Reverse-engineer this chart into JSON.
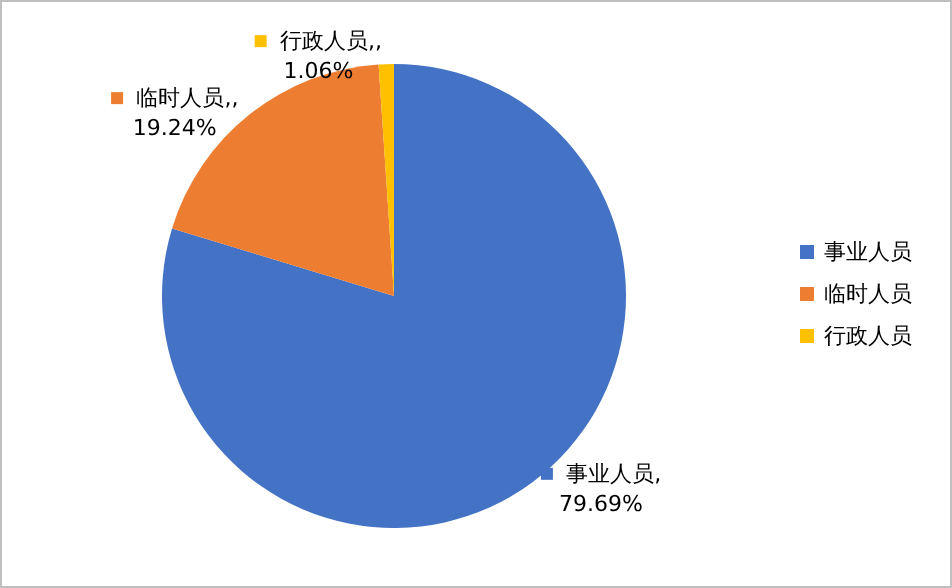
{
  "chart_data": {
    "type": "pie",
    "categories": [
      "事业人员",
      "临时人员",
      "行政人员"
    ],
    "values": [
      79.69,
      19.24,
      1.06
    ],
    "colors": [
      "#4472c4",
      "#ed7d31",
      "#ffc000"
    ],
    "value_labels": [
      "事业人员,\n79.69%",
      "临时人员,,\n19.24%",
      "行政人员,,\n1.06%"
    ],
    "legend": "right"
  }
}
